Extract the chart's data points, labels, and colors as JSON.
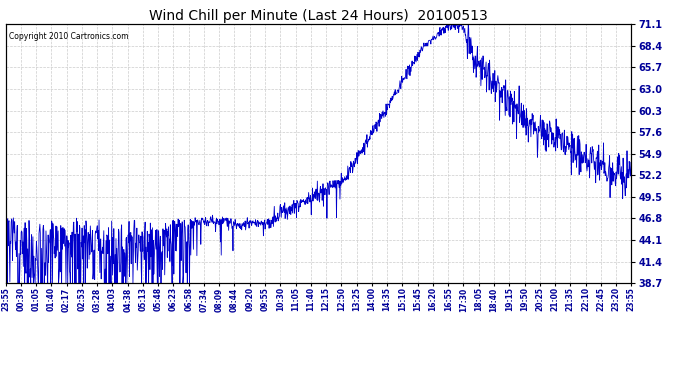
{
  "title": "Wind Chill per Minute (Last 24 Hours)  20100513",
  "copyright": "Copyright 2010 Cartronics.com",
  "yticks": [
    38.7,
    41.4,
    44.1,
    46.8,
    49.5,
    52.2,
    54.9,
    57.6,
    60.3,
    63.0,
    65.7,
    68.4,
    71.1
  ],
  "ymin": 38.7,
  "ymax": 71.1,
  "line_color": "#0000cc",
  "background_color": "#ffffff",
  "grid_color": "#cccccc",
  "title_color": "#000000",
  "copyright_color": "#000000",
  "x_tick_labels": [
    "23:55",
    "00:30",
    "01:05",
    "01:40",
    "02:17",
    "02:53",
    "03:28",
    "04:03",
    "04:38",
    "05:13",
    "05:48",
    "06:23",
    "06:58",
    "07:34",
    "08:09",
    "08:44",
    "09:20",
    "09:55",
    "10:30",
    "11:05",
    "11:40",
    "12:15",
    "12:50",
    "13:25",
    "14:00",
    "14:35",
    "15:10",
    "15:45",
    "16:20",
    "16:55",
    "17:30",
    "18:05",
    "18:40",
    "19:15",
    "19:50",
    "20:25",
    "21:00",
    "21:35",
    "22:10",
    "22:45",
    "23:20",
    "23:55"
  ],
  "seed": 12345,
  "n_points": 1440
}
